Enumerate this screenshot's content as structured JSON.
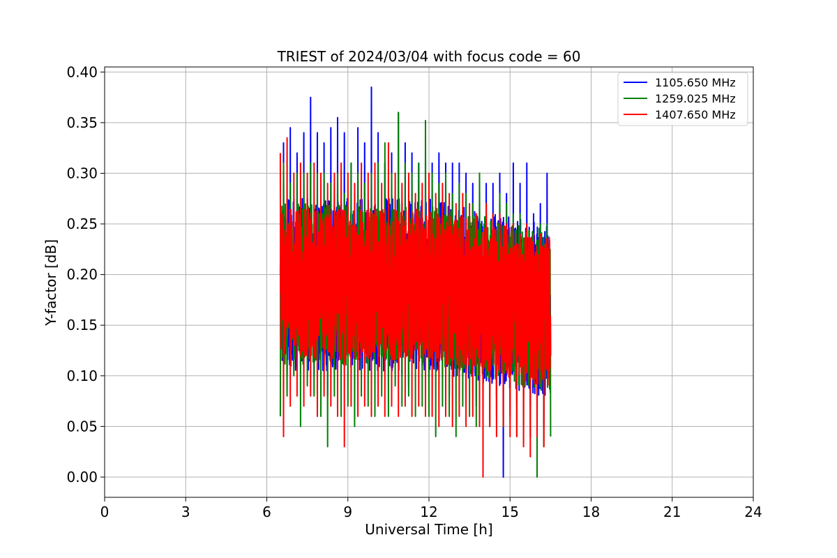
{
  "chart_data": {
    "type": "line",
    "title": "TRIEST of 2024/03/04 with focus code = 60",
    "xlabel": "Universal Time [h]",
    "ylabel": "Y-factor [dB]",
    "xlim": [
      0,
      24
    ],
    "ylim": [
      -0.02,
      0.405
    ],
    "x_ticks": [
      0,
      3,
      6,
      9,
      12,
      15,
      18,
      21,
      24
    ],
    "x_tick_labels": [
      "0",
      "3",
      "6",
      "9",
      "12",
      "15",
      "18",
      "21",
      "24"
    ],
    "y_ticks": [
      0.0,
      0.05,
      0.1,
      0.15,
      0.2,
      0.25,
      0.3,
      0.35,
      0.4
    ],
    "y_tick_labels": [
      "0.00",
      "0.05",
      "0.10",
      "0.15",
      "0.20",
      "0.25",
      "0.30",
      "0.35",
      "0.40"
    ],
    "grid": true,
    "legend_position": "top-right",
    "series": [
      {
        "name": "1105.650 MHz",
        "color": "#0000ff",
        "x_range": [
          6.5,
          16.5
        ],
        "min": 0.0,
        "max": 0.385,
        "x": [
          6.5,
          6.62,
          6.75,
          6.87,
          7.0,
          7.12,
          7.25,
          7.37,
          7.5,
          7.62,
          7.75,
          7.87,
          8.0,
          8.12,
          8.25,
          8.37,
          8.5,
          8.62,
          8.75,
          8.87,
          9.0,
          9.12,
          9.25,
          9.37,
          9.5,
          9.62,
          9.75,
          9.87,
          10.0,
          10.12,
          10.25,
          10.37,
          10.5,
          10.62,
          10.75,
          10.87,
          11.0,
          11.12,
          11.25,
          11.37,
          11.5,
          11.62,
          11.75,
          11.87,
          12.0,
          12.12,
          12.25,
          12.37,
          12.5,
          12.62,
          12.75,
          12.87,
          13.0,
          13.12,
          13.25,
          13.37,
          13.5,
          13.62,
          13.75,
          13.87,
          14.0,
          14.12,
          14.25,
          14.37,
          14.5,
          14.62,
          14.75,
          14.87,
          15.0,
          15.12,
          15.25,
          15.37,
          15.5,
          15.62,
          15.75,
          15.87,
          16.0,
          16.12,
          16.25,
          16.37,
          16.5
        ],
        "values": [
          0.2,
          0.33,
          0.1,
          0.345,
          0.12,
          0.32,
          0.11,
          0.34,
          0.13,
          0.375,
          0.1,
          0.34,
          0.12,
          0.33,
          0.08,
          0.345,
          0.11,
          0.355,
          0.1,
          0.34,
          0.12,
          0.31,
          0.13,
          0.345,
          0.11,
          0.33,
          0.12,
          0.385,
          0.1,
          0.34,
          0.12,
          0.31,
          0.11,
          0.32,
          0.13,
          0.36,
          0.1,
          0.33,
          0.09,
          0.32,
          0.12,
          0.31,
          0.11,
          0.33,
          0.09,
          0.31,
          0.12,
          0.32,
          0.1,
          0.31,
          0.08,
          0.31,
          0.12,
          0.31,
          0.1,
          0.3,
          0.11,
          0.29,
          0.07,
          0.3,
          0.11,
          0.29,
          0.1,
          0.29,
          0.08,
          0.3,
          0.0,
          0.28,
          0.09,
          0.31,
          0.07,
          0.29,
          0.08,
          0.31,
          0.07,
          0.26,
          0.06,
          0.27,
          0.05,
          0.3,
          0.12
        ]
      },
      {
        "name": "1259.025 MHz",
        "color": "#008000",
        "x_range": [
          6.5,
          16.5
        ],
        "min": 0.0,
        "max": 0.352,
        "x": [
          6.5,
          6.62,
          6.75,
          6.87,
          7.0,
          7.12,
          7.25,
          7.37,
          7.5,
          7.62,
          7.75,
          7.87,
          8.0,
          8.12,
          8.25,
          8.37,
          8.5,
          8.62,
          8.75,
          8.87,
          9.0,
          9.12,
          9.25,
          9.37,
          9.5,
          9.62,
          9.75,
          9.87,
          10.0,
          10.12,
          10.25,
          10.37,
          10.5,
          10.62,
          10.75,
          10.87,
          11.0,
          11.12,
          11.25,
          11.37,
          11.5,
          11.62,
          11.75,
          11.87,
          12.0,
          12.12,
          12.25,
          12.37,
          12.5,
          12.62,
          12.75,
          12.87,
          13.0,
          13.12,
          13.25,
          13.37,
          13.5,
          13.62,
          13.75,
          13.87,
          14.0,
          14.12,
          14.25,
          14.37,
          14.5,
          14.62,
          14.75,
          14.87,
          15.0,
          15.12,
          15.25,
          15.37,
          15.5,
          15.62,
          15.75,
          15.87,
          16.0,
          16.12,
          16.25,
          16.37,
          16.5
        ],
        "values": [
          0.06,
          0.31,
          0.08,
          0.29,
          0.1,
          0.3,
          0.05,
          0.3,
          0.09,
          0.31,
          0.08,
          0.3,
          0.06,
          0.3,
          0.03,
          0.29,
          0.08,
          0.3,
          0.06,
          0.28,
          0.07,
          0.31,
          0.05,
          0.3,
          0.08,
          0.29,
          0.07,
          0.3,
          0.06,
          0.31,
          0.08,
          0.33,
          0.06,
          0.3,
          0.09,
          0.36,
          0.07,
          0.31,
          0.08,
          0.3,
          0.06,
          0.31,
          0.07,
          0.352,
          0.06,
          0.3,
          0.04,
          0.29,
          0.07,
          0.3,
          0.06,
          0.28,
          0.04,
          0.29,
          0.07,
          0.28,
          0.06,
          0.27,
          0.05,
          0.3,
          0.06,
          0.27,
          0.05,
          0.26,
          0.06,
          0.28,
          0.05,
          0.27,
          0.06,
          0.26,
          0.04,
          0.26,
          0.05,
          0.25,
          0.04,
          0.24,
          0.0,
          0.25,
          0.03,
          0.25,
          0.04
        ]
      },
      {
        "name": "1407.650 MHz",
        "color": "#ff0000",
        "x_range": [
          6.5,
          16.5
        ],
        "min": 0.0,
        "max": 0.335,
        "x": [
          6.5,
          6.62,
          6.75,
          6.87,
          7.0,
          7.12,
          7.25,
          7.37,
          7.5,
          7.62,
          7.75,
          7.87,
          8.0,
          8.12,
          8.25,
          8.37,
          8.5,
          8.62,
          8.75,
          8.87,
          9.0,
          9.12,
          9.25,
          9.37,
          9.5,
          9.62,
          9.75,
          9.87,
          10.0,
          10.12,
          10.25,
          10.37,
          10.5,
          10.62,
          10.75,
          10.87,
          11.0,
          11.12,
          11.25,
          11.37,
          11.5,
          11.62,
          11.75,
          11.87,
          12.0,
          12.12,
          12.25,
          12.37,
          12.5,
          12.62,
          12.75,
          12.87,
          13.0,
          13.12,
          13.25,
          13.37,
          13.5,
          13.62,
          13.75,
          13.87,
          14.0,
          14.12,
          14.25,
          14.37,
          14.5,
          14.62,
          14.75,
          14.87,
          15.0,
          15.12,
          15.25,
          15.37,
          15.5,
          15.62,
          15.75,
          15.87,
          16.0,
          16.12,
          16.25,
          16.37,
          16.5
        ],
        "values": [
          0.32,
          0.04,
          0.335,
          0.07,
          0.3,
          0.08,
          0.31,
          0.07,
          0.3,
          0.08,
          0.31,
          0.06,
          0.3,
          0.08,
          0.29,
          0.07,
          0.3,
          0.06,
          0.31,
          0.03,
          0.3,
          0.07,
          0.29,
          0.06,
          0.31,
          0.07,
          0.3,
          0.06,
          0.31,
          0.07,
          0.29,
          0.06,
          0.33,
          0.07,
          0.3,
          0.06,
          0.29,
          0.07,
          0.3,
          0.06,
          0.28,
          0.07,
          0.29,
          0.06,
          0.3,
          0.06,
          0.28,
          0.05,
          0.29,
          0.06,
          0.28,
          0.05,
          0.27,
          0.06,
          0.28,
          0.05,
          0.27,
          0.06,
          0.26,
          0.05,
          0.0,
          0.27,
          0.05,
          0.26,
          0.04,
          0.26,
          0.05,
          0.25,
          0.04,
          0.25,
          0.04,
          0.24,
          0.03,
          0.25,
          0.02,
          0.24,
          0.04,
          0.24,
          0.03,
          0.23,
          0.12
        ]
      }
    ]
  }
}
